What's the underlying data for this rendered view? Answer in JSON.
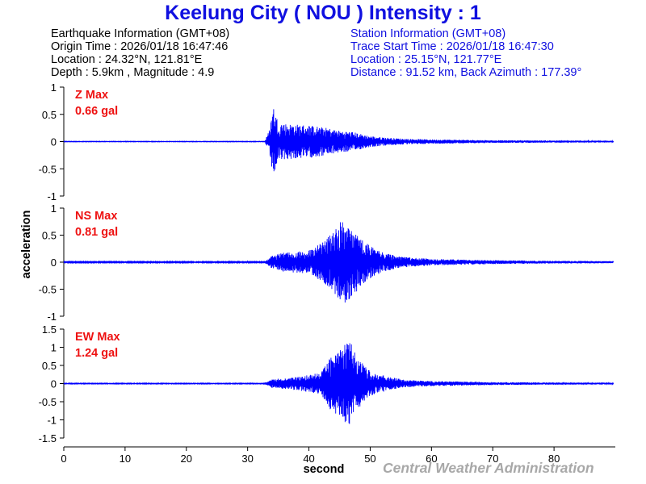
{
  "title": "Keelung City ( NOU ) Intensity : 1",
  "earthquake": {
    "heading": "Earthquake Information  (GMT+08)",
    "origin_time": "Origin Time : 2026/01/18 16:47:46",
    "location": "Location : 24.32°N, 121.81°E",
    "depth_magnitude": "Depth : 5.9km , Magnitude : 4.9"
  },
  "station": {
    "heading": "Station Information  (GMT+08)",
    "trace_start": "Trace Start Time : 2026/01/18 16:47:30",
    "location": "Location : 25.15°N, 121.77°E",
    "distance": "Distance : 91.52 km, Back Azimuth : 177.39°"
  },
  "credit": "Central Weather Administration",
  "colors": {
    "title": "#1010e0",
    "trace": "#0000ff",
    "max_label": "#ee1111",
    "credit": "#a8a8a8"
  },
  "chart_data": {
    "type": "line",
    "xlabel": "second",
    "ylabel": "acceleration",
    "xlim": [
      0,
      90
    ],
    "xticks": [
      0,
      10,
      20,
      30,
      40,
      50,
      60,
      70,
      80
    ],
    "grid": false,
    "panels": [
      {
        "name": "Z Max",
        "max_label": "Z Max",
        "max_value": "0.66 gal",
        "ylim": [
          -1,
          1
        ],
        "yticks": [
          1,
          0.5,
          0,
          -0.5,
          -1
        ],
        "ytick_labels": [
          "1",
          "0.5",
          "0",
          "-0.5",
          "-1"
        ],
        "envelope": {
          "t": [
            0,
            32.8,
            33.5,
            34.2,
            35,
            37,
            40,
            43,
            45,
            47,
            50,
            53,
            56,
            60,
            70,
            80,
            90
          ],
          "amp": [
            0.005,
            0.005,
            0.2,
            0.66,
            0.35,
            0.32,
            0.3,
            0.25,
            0.2,
            0.18,
            0.1,
            0.07,
            0.05,
            0.04,
            0.025,
            0.02,
            0.015
          ]
        }
      },
      {
        "name": "NS Max",
        "max_label": "NS Max",
        "max_value": "0.81 gal",
        "ylim": [
          -1,
          1
        ],
        "yticks": [
          1,
          0.5,
          0,
          -0.5,
          -1
        ],
        "ytick_labels": [
          "1",
          "0.5",
          "0",
          "-0.5",
          "-1"
        ],
        "envelope": {
          "t": [
            0,
            32.8,
            34,
            36,
            40,
            42,
            44,
            45.5,
            47,
            48.5,
            50,
            52,
            55,
            60,
            70,
            80,
            90
          ],
          "amp": [
            0.01,
            0.01,
            0.12,
            0.18,
            0.22,
            0.35,
            0.55,
            0.81,
            0.65,
            0.45,
            0.3,
            0.18,
            0.1,
            0.06,
            0.035,
            0.025,
            0.02
          ]
        }
      },
      {
        "name": "EW Max",
        "max_label": "EW Max",
        "max_value": "1.24 gal",
        "ylim": [
          -1.5,
          1.5
        ],
        "yticks": [
          1.5,
          1,
          0.5,
          0,
          -0.5,
          -1,
          -1.5
        ],
        "ytick_labels": [
          "1.5",
          "1",
          "0.5",
          "0",
          "-0.5",
          "-1",
          "-1.5"
        ],
        "envelope": {
          "t": [
            0,
            32.8,
            34,
            38,
            42,
            43.5,
            45,
            46.5,
            48,
            50,
            53,
            56,
            60,
            70,
            80,
            90
          ],
          "amp": [
            0.01,
            0.01,
            0.12,
            0.18,
            0.3,
            0.75,
            0.9,
            1.24,
            0.7,
            0.35,
            0.18,
            0.1,
            0.07,
            0.04,
            0.03,
            0.025
          ]
        }
      }
    ]
  }
}
